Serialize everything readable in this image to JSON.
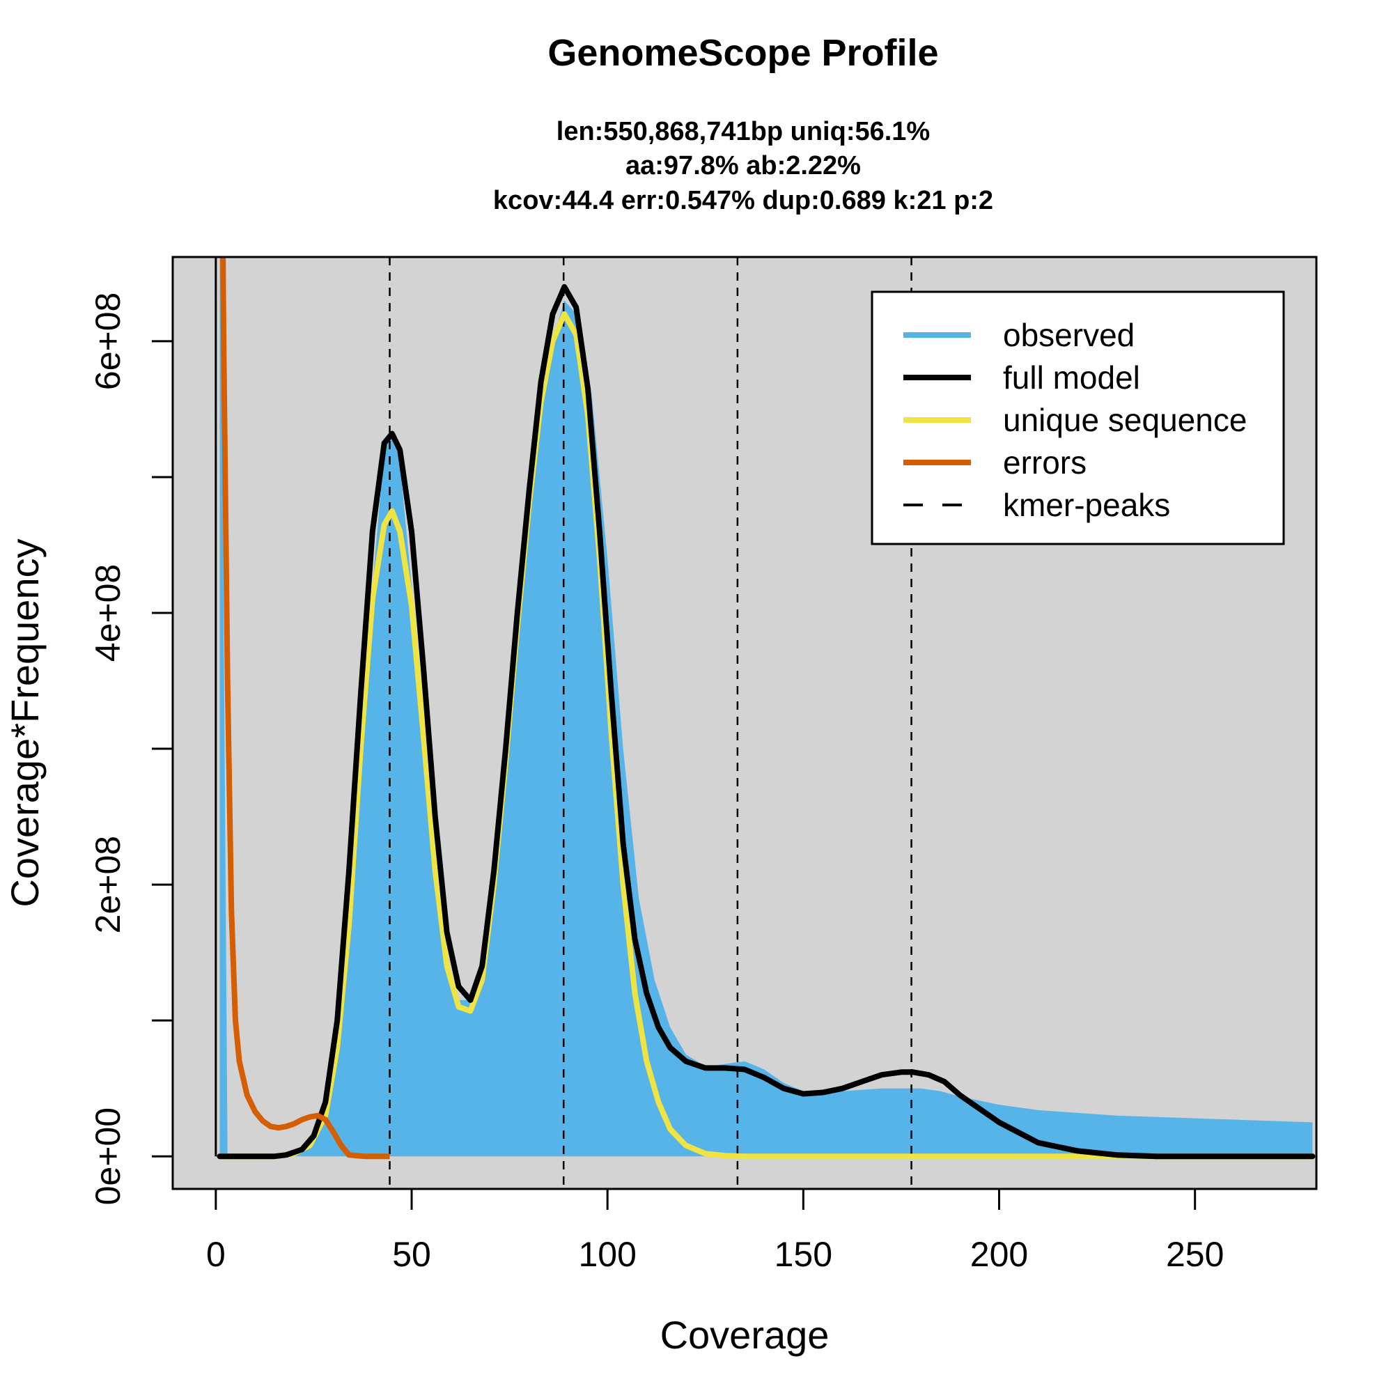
{
  "chart_data": {
    "type": "area",
    "title": "GenomeScope Profile",
    "subtitle_lines": [
      "len:550,868,741bp uniq:56.1%",
      "aa:97.8% ab:2.22%",
      "kcov:44.4 err:0.547%  dup:0.689  k:21 p:2"
    ],
    "xlabel": "Coverage",
    "ylabel": "Coverage*Frequency",
    "xlim": [
      -11,
      281
    ],
    "ylim": [
      -24000000,
      662000000
    ],
    "x_ticks": [
      0,
      50,
      100,
      150,
      200,
      250
    ],
    "x_tick_labels": [
      "0",
      "50",
      "100",
      "150",
      "200",
      "250"
    ],
    "y_ticks": [
      0,
      100000000,
      200000000,
      300000000,
      400000000,
      500000000,
      600000000
    ],
    "y_tick_labels": [
      "0e+00",
      "",
      "2e+08",
      "",
      "4e+08",
      "",
      "6e+08"
    ],
    "kmer_peaks": [
      44.4,
      88.8,
      133.2,
      177.6
    ],
    "colors": {
      "background": "#d3d3d3",
      "observed": "#56b4e9",
      "full_model": "#000000",
      "unique_sequence": "#f0e442",
      "errors": "#d55e00",
      "kmer_peaks": "#000000"
    },
    "legend": {
      "position": "top-right",
      "entries": [
        {
          "label": "observed",
          "style": "observed"
        },
        {
          "label": "full model",
          "style": "full_model"
        },
        {
          "label": "unique sequence",
          "style": "unique_sequence"
        },
        {
          "label": "errors",
          "style": "errors"
        },
        {
          "label": "kmer-peaks",
          "style": "kmer_peaks"
        }
      ]
    },
    "series": [
      {
        "name": "observed",
        "x": [
          1,
          3,
          5,
          8,
          12,
          16,
          20,
          24,
          27,
          30,
          33,
          36,
          40,
          43,
          45,
          47,
          50,
          53,
          56,
          59,
          62,
          65,
          68,
          71,
          75,
          80,
          85,
          89,
          92,
          96,
          100,
          104,
          108,
          112,
          116,
          120,
          125,
          130,
          135,
          140,
          145,
          150,
          155,
          160,
          170,
          180,
          185,
          190,
          200,
          210,
          220,
          230,
          240,
          250,
          260,
          270,
          280
        ],
        "y": [
          800000000,
          0,
          0,
          0,
          0,
          0,
          0,
          10000000,
          30000000,
          60000000,
          120000000,
          240000000,
          420000000,
          520000000,
          535000000,
          510000000,
          420000000,
          300000000,
          200000000,
          140000000,
          115000000,
          115000000,
          140000000,
          210000000,
          330000000,
          470000000,
          590000000,
          630000000,
          620000000,
          560000000,
          440000000,
          300000000,
          190000000,
          130000000,
          95000000,
          75000000,
          66000000,
          68000000,
          70000000,
          64000000,
          54000000,
          48000000,
          47000000,
          48000000,
          50000000,
          50000000,
          48000000,
          44000000,
          38000000,
          34000000,
          32000000,
          30000000,
          29000000,
          28000000,
          27000000,
          26000000,
          25000000
        ]
      },
      {
        "name": "full model",
        "x": [
          1,
          5,
          10,
          15,
          18,
          22,
          25,
          28,
          31,
          34,
          37,
          40,
          43,
          45,
          47,
          50,
          53,
          56,
          59,
          62,
          65,
          68,
          71,
          74,
          77,
          80,
          83,
          86,
          89,
          92,
          95,
          98,
          101,
          104,
          107,
          110,
          113,
          116,
          120,
          125,
          130,
          135,
          140,
          145,
          150,
          155,
          160,
          165,
          170,
          175,
          178,
          182,
          186,
          190,
          195,
          200,
          210,
          220,
          230,
          240,
          250,
          260,
          270,
          280
        ],
        "y": [
          0,
          0,
          0,
          0,
          1000000,
          5000000,
          15000000,
          40000000,
          100000000,
          210000000,
          340000000,
          460000000,
          525000000,
          532000000,
          520000000,
          460000000,
          360000000,
          250000000,
          165000000,
          125000000,
          115000000,
          140000000,
          210000000,
          300000000,
          400000000,
          490000000,
          570000000,
          620000000,
          640000000,
          625000000,
          565000000,
          460000000,
          340000000,
          230000000,
          160000000,
          120000000,
          95000000,
          80000000,
          70000000,
          65000000,
          65000000,
          64000000,
          58000000,
          50000000,
          46000000,
          47000000,
          50000000,
          55000000,
          60000000,
          62000000,
          62000000,
          60000000,
          55000000,
          45000000,
          35000000,
          25000000,
          10000000,
          4000000,
          1000000,
          0,
          0,
          0,
          0,
          0
        ]
      },
      {
        "name": "unique sequence",
        "x": [
          1,
          5,
          10,
          15,
          20,
          24,
          28,
          31,
          34,
          37,
          40,
          43,
          45,
          47,
          50,
          53,
          56,
          59,
          62,
          65,
          68,
          71,
          74,
          77,
          80,
          83,
          86,
          89,
          92,
          95,
          98,
          101,
          104,
          107,
          110,
          113,
          116,
          120,
          125,
          130,
          135,
          140,
          150,
          170,
          200,
          250,
          280
        ],
        "y": [
          0,
          0,
          0,
          0,
          2000000,
          8000000,
          30000000,
          80000000,
          170000000,
          300000000,
          410000000,
          465000000,
          475000000,
          460000000,
          405000000,
          310000000,
          210000000,
          140000000,
          110000000,
          107000000,
          130000000,
          200000000,
          290000000,
          390000000,
          480000000,
          555000000,
          600000000,
          620000000,
          605000000,
          545000000,
          440000000,
          310000000,
          200000000,
          120000000,
          70000000,
          40000000,
          20000000,
          8000000,
          2000000,
          500000,
          0,
          0,
          0,
          0,
          0,
          0,
          0
        ]
      },
      {
        "name": "errors",
        "x": [
          1.8,
          2,
          3,
          4,
          5,
          6,
          8,
          10,
          12,
          14,
          16,
          18,
          20,
          22,
          24,
          26,
          28,
          30,
          32,
          34,
          38,
          44.4
        ],
        "y": [
          670000000,
          600000000,
          350000000,
          180000000,
          100000000,
          70000000,
          45000000,
          33000000,
          26000000,
          22000000,
          21000000,
          22000000,
          24000000,
          27000000,
          29000000,
          30000000,
          27000000,
          18000000,
          8000000,
          1000000,
          0,
          0
        ]
      }
    ]
  }
}
